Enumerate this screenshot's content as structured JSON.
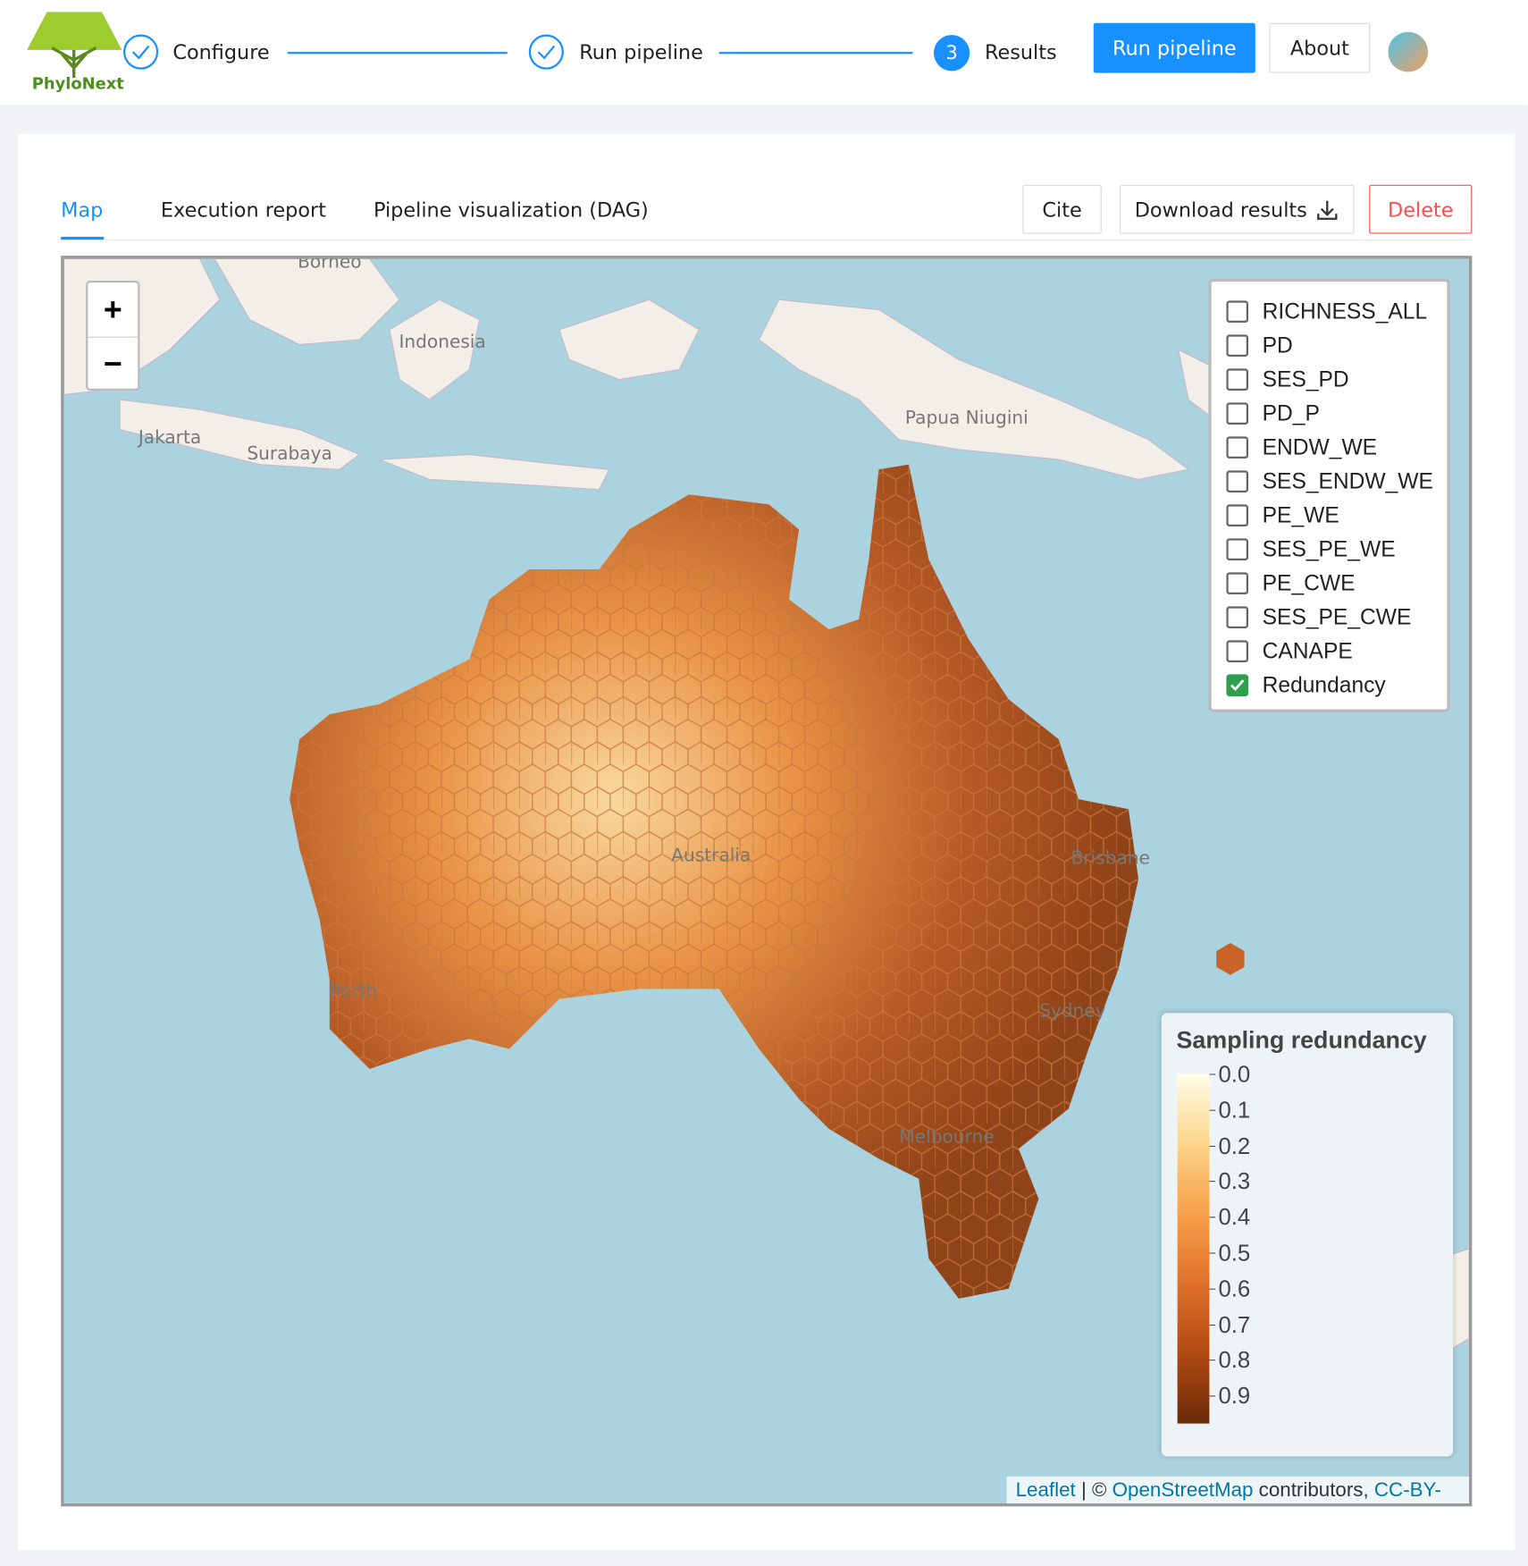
{
  "header": {
    "logo_text": "PhyloNext",
    "steps": [
      {
        "label": "Configure"
      },
      {
        "label": "Run pipeline"
      },
      {
        "number": "3",
        "label": "Results"
      }
    ],
    "buttons": [
      "Run pipeline",
      "About"
    ]
  },
  "tabs": [
    "Map",
    "Execution report",
    "Pipeline visualization (DAG)"
  ],
  "actions": [
    "Cite",
    "Download results",
    "Delete"
  ],
  "map": {
    "zoom": [
      "+",
      "−"
    ],
    "place_labels": [
      "Borneo",
      "Indonesia",
      "Jakarta",
      "Surabaya",
      "Papua Niugini",
      "Australia",
      "Brisbane",
      "Perth",
      "Sydney",
      "Melbourne"
    ],
    "layers": [
      {
        "name": "RICHNESS_ALL",
        "checked": false
      },
      {
        "name": "PD",
        "checked": false
      },
      {
        "name": "SES_PD",
        "checked": false
      },
      {
        "name": "PD_P",
        "checked": false
      },
      {
        "name": "ENDW_WE",
        "checked": false
      },
      {
        "name": "SES_ENDW_WE",
        "checked": false
      },
      {
        "name": "PE_WE",
        "checked": false
      },
      {
        "name": "SES_PE_WE",
        "checked": false
      },
      {
        "name": "PE_CWE",
        "checked": false
      },
      {
        "name": "SES_PE_CWE",
        "checked": false
      },
      {
        "name": "CANAPE",
        "checked": false
      },
      {
        "name": "Redundancy",
        "checked": true
      }
    ],
    "legend": {
      "title": "Sampling redundancy",
      "ticks": [
        "0.0",
        "0.1",
        "0.2",
        "0.3",
        "0.4",
        "0.5",
        "0.6",
        "0.7",
        "0.8",
        "0.9"
      ]
    },
    "attribution": {
      "leaflet": "Leaflet",
      "separator": "| ©",
      "osm": "OpenStreetMap",
      "contributors": "contributors,",
      "license": "CC-BY-SA"
    }
  }
}
